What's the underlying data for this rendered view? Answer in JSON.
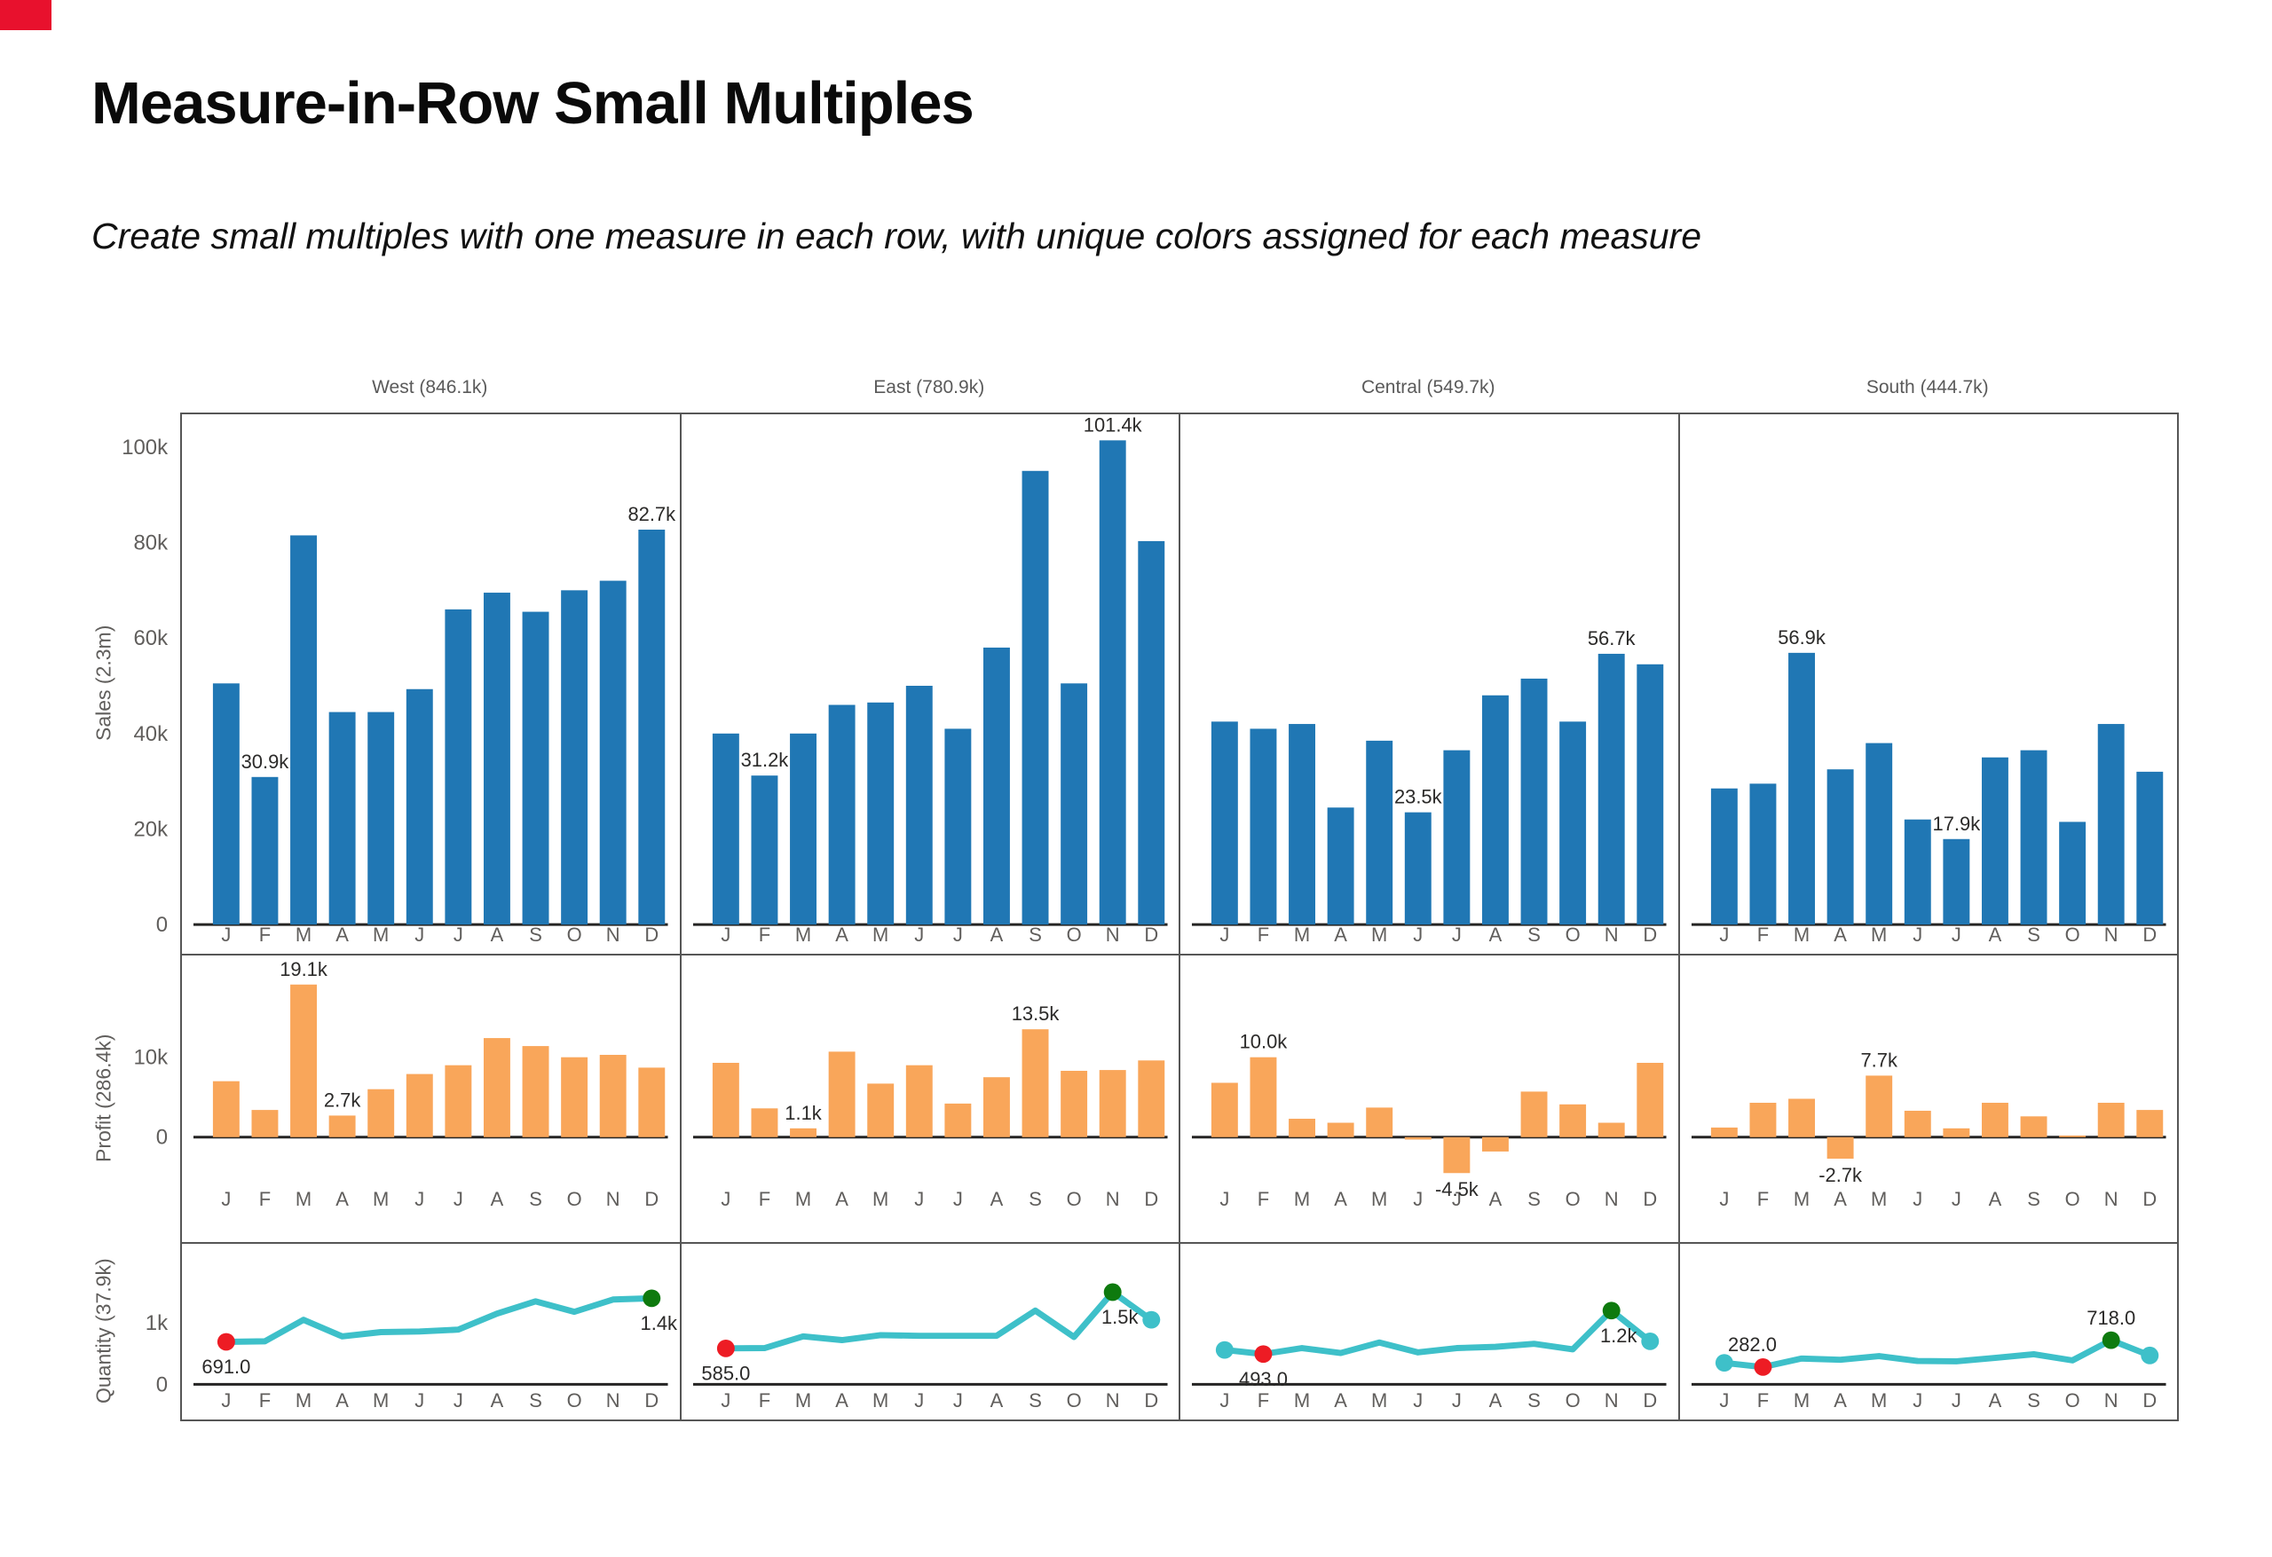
{
  "title": "Measure-in-Row Small Multiples",
  "subtitle": "Create small multiples with one measure in each row, with unique colors assigned for each measure",
  "colors": {
    "bar_blue": "#2077B4",
    "bar_orange": "#F9A65A",
    "line_teal": "#3EC0C9",
    "dot_red": "#ED1C24",
    "dot_green": "#0E7A0E",
    "axis": "#252423",
    "text_muted": "#605E5C",
    "border": "#565656"
  },
  "chart_data": {
    "type": "bar",
    "layout": "small-multiples 3 measure rows x 4 region columns, y ticks on left column only, month letters on every panel",
    "columns": [
      "West (846.1k)",
      "East (780.9k)",
      "Central (549.7k)",
      "South (444.7k)"
    ],
    "months": [
      "J",
      "F",
      "M",
      "A",
      "M",
      "J",
      "J",
      "A",
      "S",
      "O",
      "N",
      "D"
    ],
    "rows": [
      {
        "measure": "Sales  (2.3m)",
        "type": "bar",
        "color": "#2077B4",
        "ylim": [
          0,
          106900
        ],
        "ticks": [
          {
            "v": 0,
            "t": "0"
          },
          {
            "v": 20000,
            "t": "20k"
          },
          {
            "v": 40000,
            "t": "40k"
          },
          {
            "v": 60000,
            "t": "60k"
          },
          {
            "v": 80000,
            "t": "80k"
          },
          {
            "v": 100000,
            "t": "100k"
          }
        ],
        "panels": [
          {
            "region": "West",
            "values": [
              50500,
              30900,
              81500,
              44500,
              44500,
              49300,
              66000,
              69500,
              65500,
              70000,
              72000,
              82700
            ],
            "annotations": [
              {
                "i": 1,
                "text": "30.9k"
              },
              {
                "i": 11,
                "text": "82.7k"
              }
            ]
          },
          {
            "region": "East",
            "values": [
              40000,
              31200,
              40000,
              46000,
              46500,
              50000,
              41000,
              58000,
              95000,
              50500,
              101400,
              80300
            ],
            "annotations": [
              {
                "i": 1,
                "text": "31.2k"
              },
              {
                "i": 10,
                "text": "101.4k"
              }
            ]
          },
          {
            "region": "Central",
            "values": [
              42500,
              41000,
              42000,
              24500,
              38500,
              23500,
              36500,
              48000,
              51500,
              42500,
              56700,
              54500
            ],
            "annotations": [
              {
                "i": 5,
                "text": "23.5k"
              },
              {
                "i": 10,
                "text": "56.7k"
              }
            ]
          },
          {
            "region": "South",
            "values": [
              28500,
              29500,
              56900,
              32500,
              38000,
              22000,
              17900,
              35000,
              36500,
              21500,
              42000,
              32000
            ],
            "annotations": [
              {
                "i": 2,
                "text": "56.9k"
              },
              {
                "i": 6,
                "text": "17.9k"
              }
            ]
          }
        ]
      },
      {
        "measure": "Profit  (286.4k)",
        "type": "bar",
        "color": "#F9A65A",
        "ylim": [
          -7000,
          21500
        ],
        "ticks": [
          {
            "v": 0,
            "t": "0"
          },
          {
            "v": 10000,
            "t": "10k"
          }
        ],
        "panels": [
          {
            "region": "West",
            "values": [
              7000,
              3400,
              19100,
              2700,
              6000,
              7900,
              9000,
              12400,
              11400,
              10000,
              10300,
              8700
            ],
            "annotations": [
              {
                "i": 2,
                "text": "19.1k"
              },
              {
                "i": 3,
                "text": "2.7k"
              }
            ]
          },
          {
            "region": "East",
            "values": [
              9300,
              3600,
              1100,
              10700,
              6700,
              9000,
              4200,
              7500,
              13500,
              8300,
              8400,
              9600
            ],
            "annotations": [
              {
                "i": 2,
                "text": "1.1k"
              },
              {
                "i": 8,
                "text": "13.5k"
              }
            ]
          },
          {
            "region": "Central",
            "values": [
              6800,
              10000,
              2300,
              1800,
              3700,
              -300,
              -4500,
              -1800,
              5700,
              4100,
              1800,
              9300
            ],
            "annotations": [
              {
                "i": 1,
                "text": "10.0k"
              },
              {
                "i": 6,
                "text": "-4.5k"
              }
            ]
          },
          {
            "region": "South",
            "values": [
              1200,
              4300,
              4800,
              -2700,
              7700,
              3300,
              1100,
              4300,
              2600,
              200,
              4300,
              3400
            ],
            "annotations": [
              {
                "i": 4,
                "text": "7.7k"
              },
              {
                "i": 3,
                "text": "-2.7k"
              }
            ]
          }
        ]
      },
      {
        "measure": "Quantity  (37.9k)",
        "type": "line",
        "color": "#3EC0C9",
        "ylim": [
          0,
          1900
        ],
        "ticks": [
          {
            "v": 0,
            "t": "0"
          },
          {
            "v": 1000,
            "t": "1k"
          }
        ],
        "panels": [
          {
            "region": "West",
            "values": [
              691,
              700,
              1050,
              780,
              850,
              860,
              890,
              1150,
              1350,
              1180,
              1380,
              1400
            ],
            "dots": [
              {
                "i": 0,
                "color": "red",
                "text": "691.0",
                "pos": "below"
              },
              {
                "i": 11,
                "color": "green",
                "text": "1.4k",
                "pos": "below",
                "dx": 8
              }
            ]
          },
          {
            "region": "East",
            "values": [
              585,
              590,
              780,
              720,
              800,
              790,
              790,
              790,
              1200,
              770,
              1500,
              1050
            ],
            "dots": [
              {
                "i": 0,
                "color": "red",
                "text": "585.0",
                "pos": "below"
              },
              {
                "i": 10,
                "color": "green",
                "text": "1.5k",
                "pos": "below",
                "dx": 8
              },
              {
                "i": 11,
                "color": "teal"
              }
            ]
          },
          {
            "region": "Central",
            "values": [
              560,
              493,
              590,
              510,
              680,
              520,
              590,
              610,
              660,
              570,
              1200,
              700
            ],
            "dots": [
              {
                "i": 0,
                "color": "teal"
              },
              {
                "i": 1,
                "color": "red",
                "text": "493.0",
                "pos": "below"
              },
              {
                "i": 10,
                "color": "green",
                "text": "1.2k",
                "pos": "below",
                "dx": 8
              },
              {
                "i": 11,
                "color": "teal"
              }
            ]
          },
          {
            "region": "South",
            "values": [
              350,
              282,
              420,
              400,
              460,
              380,
              375,
              430,
              490,
              390,
              718,
              470
            ],
            "dots": [
              {
                "i": 0,
                "color": "teal"
              },
              {
                "i": 1,
                "color": "red",
                "text": "282.0",
                "pos": "above",
                "dx": -12
              },
              {
                "i": 10,
                "color": "green",
                "text": "718.0",
                "pos": "above"
              },
              {
                "i": 11,
                "color": "teal"
              }
            ]
          }
        ]
      }
    ]
  }
}
